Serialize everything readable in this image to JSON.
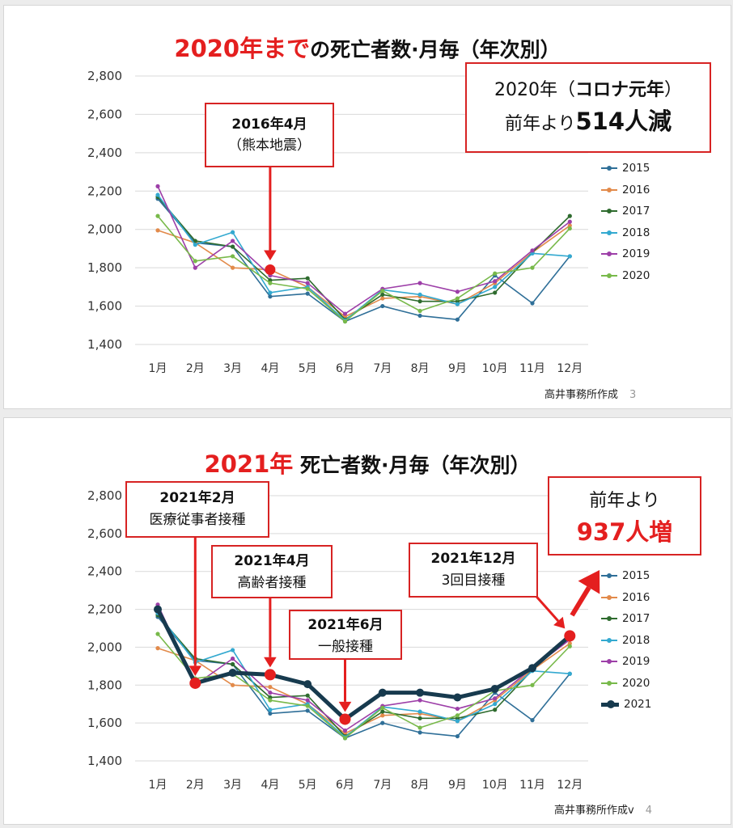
{
  "colors": {
    "red": "#e41f1f",
    "series": [
      "#2f6f98",
      "#e28a4a",
      "#2e6b2e",
      "#33a9d0",
      "#9d3fa8",
      "#78b94a",
      "#173a4e"
    ]
  },
  "slide1": {
    "title_red": "2020年まで",
    "title_rest": "の死亡者数·月毎（年次別）",
    "notice": {
      "line1_a": "2020年（",
      "line1_b": "コロナ元年",
      "line1_c": "）",
      "line2_a": "前年より",
      "line2_b": "514人減"
    },
    "callout": {
      "line1": "2016年4月",
      "line2": "（熊本地震）"
    },
    "footer": "高井事務所作成",
    "page": "3"
  },
  "slide2": {
    "title_red": "2021年",
    "title_rest": " 死亡者数·月毎（年次別）",
    "notice": {
      "line1": "前年より",
      "line2": "937人増"
    },
    "callouts": [
      {
        "line1": "2021年2月",
        "line2": "医療従事者接種"
      },
      {
        "line1": "2021年4月",
        "line2": "高齢者接種"
      },
      {
        "line1": "2021年6月",
        "line2": "一般接種"
      },
      {
        "line1": "2021年12月",
        "line2": "3回目接種"
      }
    ],
    "footer": "高井事務所作成v",
    "page": "4"
  },
  "chart_data": [
    {
      "type": "line",
      "title": "2020年までの死亡者数·月毎（年次別）",
      "categories": [
        "1月",
        "2月",
        "3月",
        "4月",
        "5月",
        "6月",
        "7月",
        "8月",
        "9月",
        "10月",
        "11月",
        "12月"
      ],
      "ylim": [
        1400,
        2800
      ],
      "yticks": [
        "1,400",
        "1,600",
        "1,800",
        "2,000",
        "2,200",
        "2,400",
        "2,600",
        "2,800"
      ],
      "series": [
        {
          "name": "2015",
          "values": [
            2160,
            1930,
            1910,
            1650,
            1665,
            1520,
            1600,
            1550,
            1530,
            1760,
            1615,
            1860
          ]
        },
        {
          "name": "2016",
          "values": [
            1995,
            1930,
            1800,
            1790,
            1700,
            1545,
            1640,
            1650,
            1610,
            1720,
            1880,
            2020
          ]
        },
        {
          "name": "2017",
          "values": [
            2170,
            1940,
            1910,
            1735,
            1745,
            1530,
            1660,
            1625,
            1625,
            1670,
            1880,
            2070
          ]
        },
        {
          "name": "2018",
          "values": [
            2180,
            1920,
            1985,
            1670,
            1700,
            1525,
            1685,
            1660,
            1610,
            1700,
            1875,
            1860
          ]
        },
        {
          "name": "2019",
          "values": [
            2225,
            1800,
            1940,
            1760,
            1720,
            1560,
            1690,
            1720,
            1675,
            1730,
            1890,
            2040
          ]
        },
        {
          "name": "2020",
          "values": [
            2070,
            1835,
            1860,
            1720,
            1690,
            1520,
            1680,
            1575,
            1640,
            1770,
            1800,
            2005
          ]
        }
      ]
    },
    {
      "type": "line",
      "title": "2021年 死亡者数·月毎（年次別）",
      "categories": [
        "1月",
        "2月",
        "3月",
        "4月",
        "5月",
        "6月",
        "7月",
        "8月",
        "9月",
        "10月",
        "11月",
        "12月"
      ],
      "ylim": [
        1400,
        2800
      ],
      "yticks": [
        "1,400",
        "1,600",
        "1,800",
        "2,000",
        "2,200",
        "2,400",
        "2,600",
        "2,800"
      ],
      "series": [
        {
          "name": "2015",
          "values": [
            2160,
            1930,
            1910,
            1650,
            1665,
            1520,
            1600,
            1550,
            1530,
            1760,
            1615,
            1860
          ]
        },
        {
          "name": "2016",
          "values": [
            1995,
            1930,
            1800,
            1790,
            1700,
            1545,
            1640,
            1650,
            1610,
            1720,
            1880,
            2020
          ]
        },
        {
          "name": "2017",
          "values": [
            2170,
            1940,
            1910,
            1735,
            1745,
            1530,
            1660,
            1625,
            1625,
            1670,
            1880,
            2070
          ]
        },
        {
          "name": "2018",
          "values": [
            2180,
            1920,
            1985,
            1670,
            1700,
            1525,
            1685,
            1660,
            1610,
            1700,
            1875,
            1860
          ]
        },
        {
          "name": "2019",
          "values": [
            2225,
            1800,
            1940,
            1760,
            1720,
            1560,
            1690,
            1720,
            1675,
            1730,
            1890,
            2040
          ]
        },
        {
          "name": "2020",
          "values": [
            2070,
            1835,
            1860,
            1720,
            1690,
            1520,
            1680,
            1575,
            1640,
            1770,
            1800,
            2005
          ]
        },
        {
          "name": "2021",
          "values": [
            2200,
            1810,
            1865,
            1855,
            1805,
            1620,
            1760,
            1760,
            1735,
            1780,
            1890,
            2060
          ]
        }
      ]
    }
  ]
}
